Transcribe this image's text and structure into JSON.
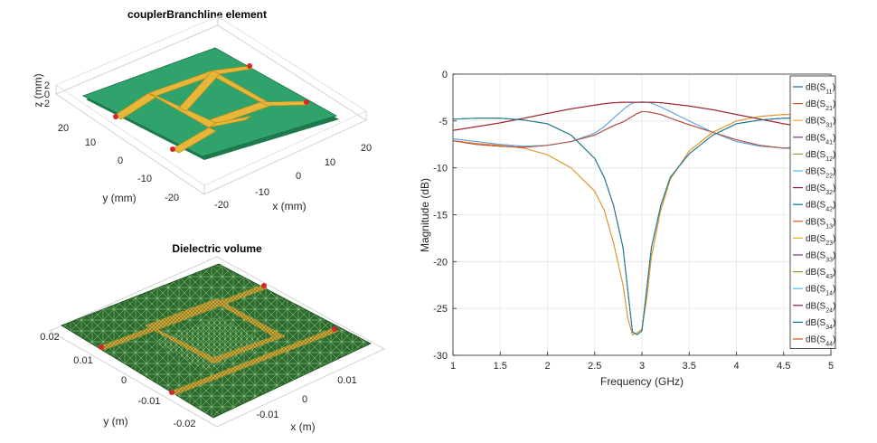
{
  "figure1": {
    "title": "couplerBranchline element",
    "x_label": "x (mm)",
    "y_label": "y (mm)",
    "z_label": "z (mm)",
    "x_ticks": [
      "-20",
      "-10",
      "0",
      "10",
      "20"
    ],
    "y_ticks": [
      "20",
      "10",
      "0",
      "-10",
      "-20"
    ],
    "z_ticks": [
      "2",
      "0",
      "-2"
    ],
    "colors": {
      "substrate": "#2fa36b",
      "metal": "#e8b73a",
      "feed": "#d62728"
    }
  },
  "figure2": {
    "title": "Dielectric volume",
    "x_label": "x (m)",
    "y_label": "y (m)",
    "x_ticks": [
      "-0.01",
      "0",
      "0.01"
    ],
    "y_ticks": [
      "0.02",
      "0.01",
      "0",
      "-0.01",
      "-0.02"
    ],
    "colors": {
      "mesh": "#2d6a2e",
      "strip": "#c9a93b",
      "feed": "#d62728"
    }
  },
  "chart_data": {
    "type": "line",
    "title": "",
    "xlabel": "Frequency (GHz)",
    "ylabel": "Magnitude (dB)",
    "xlim": [
      1,
      5
    ],
    "ylim": [
      -30,
      0
    ],
    "x_ticks": [
      1,
      1.5,
      2,
      2.5,
      3,
      3.5,
      4,
      4.5,
      5
    ],
    "y_ticks": [
      0,
      -5,
      -10,
      -15,
      -20,
      -25,
      -30
    ],
    "grid": true,
    "legend_position": "right",
    "x": [
      1,
      1.25,
      1.5,
      1.75,
      2,
      2.25,
      2.5,
      2.6,
      2.7,
      2.8,
      2.85,
      2.9,
      2.95,
      3,
      3.05,
      3.1,
      3.2,
      3.3,
      3.5,
      3.75,
      4,
      4.25,
      4.5,
      4.75,
      5
    ],
    "series": [
      {
        "name": "dB(S11)",
        "sub": "11",
        "color": "#0072bd",
        "values": [
          -7.1,
          -7.5,
          -7.7,
          -7.8,
          -7.6,
          -7.2,
          -6.5,
          -6.0,
          -5.5,
          -5.1,
          -4.8,
          -4.5,
          -4.2,
          -4.0,
          -4.0,
          -4.1,
          -4.3,
          -4.7,
          -5.4,
          -6.2,
          -7.0,
          -7.6,
          -7.9,
          -7.9,
          -7.7
        ]
      },
      {
        "name": "dB(S21)",
        "sub": "21",
        "color": "#d95319",
        "values": [
          -4.8,
          -4.7,
          -4.7,
          -4.9,
          -5.3,
          -6.5,
          -9.0,
          -11.0,
          -14.0,
          -18.5,
          -23.0,
          -27.5,
          -27.8,
          -27.4,
          -23.0,
          -18.5,
          -14.0,
          -11.0,
          -8.5,
          -6.5,
          -5.3,
          -4.9,
          -4.7,
          -4.7,
          -4.8
        ]
      },
      {
        "name": "dB(S31)",
        "sub": "31",
        "color": "#edb120",
        "values": [
          -6.0,
          -5.6,
          -5.2,
          -4.7,
          -4.2,
          -3.7,
          -3.3,
          -3.15,
          -3.05,
          -3.0,
          -3.0,
          -3.0,
          -3.0,
          -3.0,
          -3.0,
          -3.0,
          -3.05,
          -3.15,
          -3.4,
          -3.8,
          -4.3,
          -4.8,
          -5.3,
          -5.7,
          -6.0
        ]
      },
      {
        "name": "dB(S41)",
        "sub": "41",
        "color": "#7e2f8e",
        "values": [
          -6.9,
          -7.2,
          -7.5,
          -7.7,
          -7.6,
          -7.2,
          -6.3,
          -5.6,
          -4.7,
          -3.8,
          -3.4,
          -3.1,
          -3.0,
          -2.95,
          -3.0,
          -3.1,
          -3.5,
          -4.0,
          -5.0,
          -6.2,
          -7.2,
          -7.7,
          -7.9,
          -7.6,
          -7.2
        ]
      },
      {
        "name": "dB(S12)",
        "sub": "12",
        "color": "#77ac30",
        "values": [
          -4.8,
          -4.7,
          -4.7,
          -4.9,
          -5.3,
          -6.5,
          -9.0,
          -11.0,
          -14.0,
          -18.5,
          -23.0,
          -27.5,
          -27.8,
          -27.4,
          -23.0,
          -18.5,
          -14.0,
          -11.0,
          -8.5,
          -6.5,
          -5.3,
          -4.9,
          -4.7,
          -4.7,
          -4.8
        ]
      },
      {
        "name": "dB(S22)",
        "sub": "22",
        "color": "#4dbeee",
        "values": [
          -7.1,
          -7.5,
          -7.7,
          -7.8,
          -7.6,
          -7.2,
          -6.5,
          -6.0,
          -5.5,
          -5.1,
          -4.8,
          -4.5,
          -4.2,
          -4.0,
          -4.0,
          -4.1,
          -4.3,
          -4.7,
          -5.4,
          -6.2,
          -7.0,
          -7.6,
          -7.9,
          -7.9,
          -7.7
        ]
      },
      {
        "name": "dB(S32)",
        "sub": "32",
        "color": "#a2142f",
        "values": [
          -7.1,
          -7.4,
          -7.6,
          -7.9,
          -8.6,
          -10.0,
          -12.5,
          -14.5,
          -18.0,
          -22.5,
          -26.0,
          -27.8,
          -27.6,
          -27.2,
          -24.0,
          -19.5,
          -14.5,
          -11.2,
          -8.2,
          -6.2,
          -5.0,
          -4.5,
          -4.3,
          -4.3,
          -4.4
        ]
      },
      {
        "name": "dB(S42)",
        "sub": "42",
        "color": "#0072bd",
        "values": [
          -6.0,
          -5.6,
          -5.2,
          -4.7,
          -4.2,
          -3.7,
          -3.3,
          -3.15,
          -3.05,
          -3.0,
          -3.0,
          -3.0,
          -3.0,
          -3.0,
          -3.0,
          -3.0,
          -3.05,
          -3.15,
          -3.4,
          -3.8,
          -4.3,
          -4.8,
          -5.3,
          -5.7,
          -6.0
        ]
      },
      {
        "name": "dB(S13)",
        "sub": "13",
        "color": "#d95319",
        "values": [
          -6.0,
          -5.6,
          -5.2,
          -4.7,
          -4.2,
          -3.7,
          -3.3,
          -3.15,
          -3.05,
          -3.0,
          -3.0,
          -3.0,
          -3.0,
          -3.0,
          -3.0,
          -3.0,
          -3.05,
          -3.15,
          -3.4,
          -3.8,
          -4.3,
          -4.8,
          -5.3,
          -5.7,
          -6.0
        ]
      },
      {
        "name": "dB(S23)",
        "sub": "23",
        "color": "#edb120",
        "values": [
          -7.1,
          -7.4,
          -7.6,
          -7.9,
          -8.6,
          -10.0,
          -12.5,
          -14.5,
          -18.0,
          -22.5,
          -26.0,
          -27.8,
          -27.6,
          -27.2,
          -24.0,
          -19.5,
          -14.5,
          -11.2,
          -8.2,
          -6.2,
          -5.0,
          -4.5,
          -4.3,
          -4.3,
          -4.4
        ]
      },
      {
        "name": "dB(S33)",
        "sub": "33",
        "color": "#7e2f8e",
        "values": [
          -7.1,
          -7.5,
          -7.7,
          -7.8,
          -7.6,
          -7.2,
          -6.5,
          -6.0,
          -5.5,
          -5.1,
          -4.8,
          -4.5,
          -4.2,
          -4.0,
          -4.0,
          -4.1,
          -4.3,
          -4.7,
          -5.4,
          -6.2,
          -7.0,
          -7.6,
          -7.9,
          -7.9,
          -7.7
        ]
      },
      {
        "name": "dB(S43)",
        "sub": "43",
        "color": "#77ac30",
        "values": [
          -4.8,
          -4.7,
          -4.7,
          -4.9,
          -5.3,
          -6.5,
          -9.0,
          -11.0,
          -14.0,
          -18.5,
          -23.0,
          -27.5,
          -27.8,
          -27.4,
          -23.0,
          -18.5,
          -14.0,
          -11.0,
          -8.5,
          -6.5,
          -5.3,
          -4.9,
          -4.7,
          -4.7,
          -4.8
        ]
      },
      {
        "name": "dB(S14)",
        "sub": "14",
        "color": "#4dbeee",
        "values": [
          -6.9,
          -7.2,
          -7.5,
          -7.7,
          -7.6,
          -7.2,
          -6.3,
          -5.6,
          -4.7,
          -3.8,
          -3.4,
          -3.1,
          -3.0,
          -2.95,
          -3.0,
          -3.1,
          -3.5,
          -4.0,
          -5.0,
          -6.2,
          -7.2,
          -7.7,
          -7.9,
          -7.6,
          -7.2
        ]
      },
      {
        "name": "dB(S24)",
        "sub": "24",
        "color": "#a2142f",
        "values": [
          -6.0,
          -5.6,
          -5.2,
          -4.7,
          -4.2,
          -3.7,
          -3.3,
          -3.15,
          -3.05,
          -3.0,
          -3.0,
          -3.0,
          -3.0,
          -3.0,
          -3.0,
          -3.0,
          -3.05,
          -3.15,
          -3.4,
          -3.8,
          -4.3,
          -4.8,
          -5.3,
          -5.7,
          -6.0
        ]
      },
      {
        "name": "dB(S34)",
        "sub": "34",
        "color": "#0072bd",
        "values": [
          -4.8,
          -4.7,
          -4.7,
          -4.9,
          -5.3,
          -6.5,
          -9.0,
          -11.0,
          -14.0,
          -18.5,
          -23.0,
          -27.5,
          -27.8,
          -27.4,
          -23.0,
          -18.5,
          -14.0,
          -11.0,
          -8.5,
          -6.5,
          -5.3,
          -4.9,
          -4.7,
          -4.7,
          -4.8
        ]
      },
      {
        "name": "dB(S44)",
        "sub": "44",
        "color": "#d95319",
        "values": [
          -7.1,
          -7.5,
          -7.7,
          -7.8,
          -7.6,
          -7.2,
          -6.5,
          -6.0,
          -5.5,
          -5.1,
          -4.8,
          -4.5,
          -4.2,
          -4.0,
          -4.0,
          -4.1,
          -4.3,
          -4.7,
          -5.4,
          -6.2,
          -7.0,
          -7.6,
          -7.9,
          -7.9,
          -7.7
        ]
      }
    ]
  }
}
